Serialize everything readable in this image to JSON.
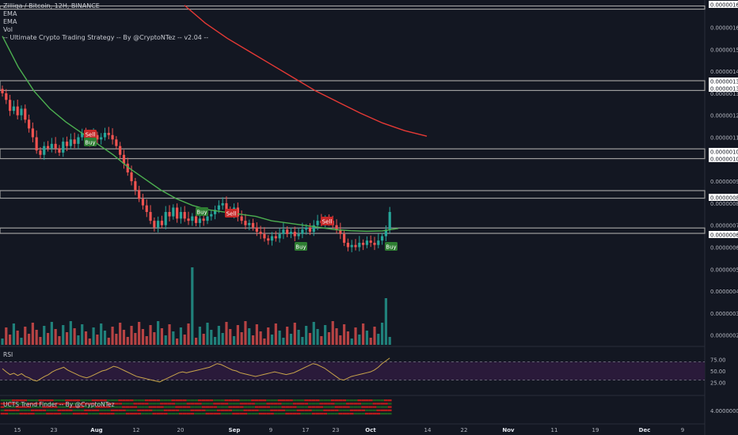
{
  "header": {
    "symbol_line": "Zilliqa / Bitcoin, 12H, BINANCE",
    "indicators": [
      "EMA",
      "EMA",
      "Vol",
      "-- Ultimate Crypto Trading Strategy -- By @CryptoNTez -- v2.04 --"
    ]
  },
  "panes": {
    "rsi_label": "RSI",
    "trend_label": "UCTS Trend Finder -- By @CryptoNTez"
  },
  "colors": {
    "background": "#131722",
    "up": "#26a69a",
    "down": "#ef5350",
    "ema_fast": "#4caf50",
    "ema_slow": "#e53935",
    "rsi_line": "#c9a54b",
    "rsi_band": "#2a1a3a",
    "level_band": "#9e9e9e",
    "buy": "#2e7d32",
    "sell": "#c62828"
  },
  "chart_data": {
    "type": "candlestick",
    "title": "Zilliqa / Bitcoin, 12H, BINANCE",
    "x_ticks": [
      "15",
      "23",
      "Aug",
      "12",
      "20",
      "Sep",
      "9",
      "17",
      "23",
      "Oct",
      "14",
      "22",
      "Nov",
      "11",
      "19",
      "Dec",
      "9"
    ],
    "y_ticks": [
      "0.00000160",
      "0.00000150",
      "0.00000140",
      "0.00000130",
      "0.00000120",
      "0.00000110",
      "0.00000090",
      "0.00000080",
      "0.00000070",
      "0.00000060",
      "0.00000050",
      "0.00000040",
      "0.00000030",
      "0.00000020"
    ],
    "price_marks": [
      "0.00000169",
      "0.00000135",
      "0.00000132",
      "0.00000104",
      "0.00000101",
      "0.00000083",
      "0.00000067"
    ],
    "levels": [
      1.69e-06,
      1.35e-06,
      1.32e-06,
      1.04e-06,
      1.01e-06,
      8.5e-07,
      8.3e-07,
      6.8e-07,
      6.7e-07
    ],
    "ylim": [
      1.7e-07,
      1.71e-06
    ],
    "close": [
      1.3,
      1.27,
      1.22,
      1.24,
      1.2,
      1.23,
      1.18,
      1.14,
      1.1,
      1.04,
      1.02,
      1.06,
      1.05,
      1.07,
      1.05,
      1.03,
      1.08,
      1.06,
      1.09,
      1.07,
      1.1,
      1.12,
      1.1,
      1.08,
      1.11,
      1.09,
      1.1,
      1.12,
      1.11,
      1.09,
      1.06,
      1.02,
      0.98,
      0.94,
      0.9,
      0.86,
      0.82,
      0.79,
      0.76,
      0.72,
      0.69,
      0.72,
      0.7,
      0.76,
      0.74,
      0.78,
      0.73,
      0.76,
      0.73,
      0.72,
      0.74,
      0.71,
      0.73,
      0.72,
      0.74,
      0.75,
      0.77,
      0.79,
      0.8,
      0.77,
      0.75,
      0.78,
      0.74,
      0.72,
      0.7,
      0.71,
      0.69,
      0.67,
      0.66,
      0.64,
      0.63,
      0.65,
      0.64,
      0.66,
      0.68,
      0.66,
      0.67,
      0.65,
      0.66,
      0.68,
      0.69,
      0.67,
      0.7,
      0.72,
      0.71,
      0.73,
      0.72,
      0.7,
      0.68,
      0.66,
      0.62,
      0.6,
      0.61,
      0.6,
      0.62,
      0.61,
      0.63,
      0.62,
      0.61,
      0.63,
      0.65,
      0.68,
      0.76
    ],
    "ema_fast": [
      1.56,
      1.42,
      1.31,
      1.23,
      1.17,
      1.12,
      1.07,
      1.02,
      0.96,
      0.91,
      0.86,
      0.82,
      0.79,
      0.77,
      0.76,
      0.75,
      0.74,
      0.72,
      0.71,
      0.7,
      0.69,
      0.68,
      0.675,
      0.672,
      0.674,
      0.685
    ],
    "ema_fast_x": [
      0,
      10,
      20,
      30,
      40,
      50,
      60,
      70,
      80,
      90,
      100,
      110,
      120,
      130,
      140,
      150,
      160,
      170,
      180,
      190,
      200,
      210,
      220,
      230,
      240,
      250
    ],
    "ema_slow": [
      1.7,
      1.62,
      1.55,
      1.49,
      1.43,
      1.37,
      1.31,
      1.26,
      1.21,
      1.165,
      1.13,
      1.105
    ],
    "ema_slow_x": [
      115,
      128,
      142,
      156,
      170,
      184,
      198,
      212,
      226,
      240,
      254,
      268
    ],
    "signals": [
      {
        "text": "Sell",
        "type": "sell",
        "i": 55
      },
      {
        "text": "Buy",
        "type": "buy",
        "i": 55
      },
      {
        "text": "Buy",
        "type": "buy",
        "i": 125
      },
      {
        "text": "Sell",
        "type": "sell",
        "i": 143
      },
      {
        "text": "Buy",
        "type": "buy",
        "i": 185
      },
      {
        "text": "Sell",
        "type": "sell",
        "i": 204
      },
      {
        "text": "Buy",
        "type": "buy",
        "i": 244
      }
    ],
    "volume_axis_tick": "0.00000020",
    "rsi_ticks": [
      "75.00",
      "50.00",
      "25.00"
    ],
    "rsi_levels": [
      70,
      30
    ],
    "rsi": [
      55,
      48,
      42,
      45,
      40,
      44,
      38,
      35,
      30,
      28,
      33,
      38,
      42,
      48,
      52,
      55,
      58,
      52,
      48,
      44,
      40,
      37,
      35,
      38,
      42,
      46,
      50,
      52,
      56,
      60,
      58,
      54,
      50,
      46,
      42,
      38,
      36,
      34,
      32,
      30,
      28,
      26,
      30,
      34,
      38,
      42,
      46,
      48,
      46,
      48,
      50,
      52,
      54,
      56,
      58,
      62,
      66,
      64,
      60,
      56,
      52,
      50,
      46,
      44,
      42,
      40,
      38,
      40,
      42,
      44,
      46,
      48,
      46,
      44,
      42,
      44,
      46,
      50,
      54,
      58,
      62,
      66,
      64,
      60,
      56,
      50,
      44,
      38,
      32,
      30,
      34,
      38,
      40,
      42,
      44,
      46,
      48,
      52,
      58,
      66,
      72,
      78
    ],
    "trend_axis_tick": "4.00000000"
  }
}
